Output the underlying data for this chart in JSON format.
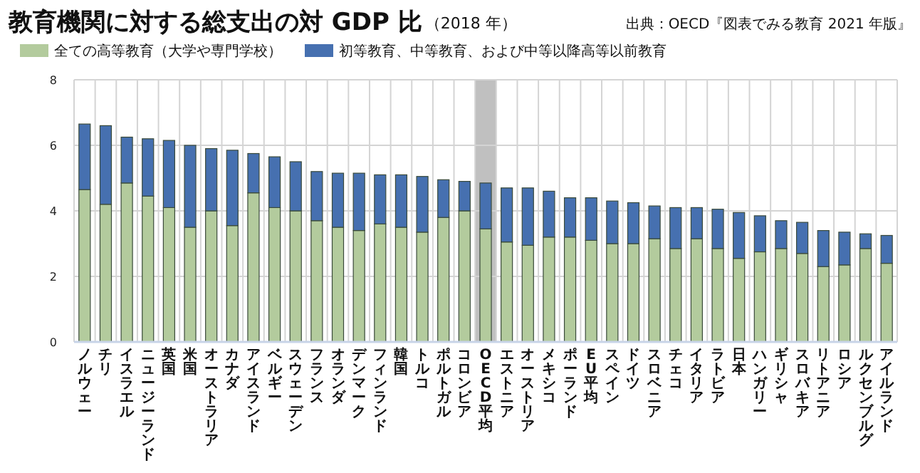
{
  "chart_data": {
    "type": "bar",
    "stacked": true,
    "title": "教育機関に対する総支出の対 GDP 比",
    "subtitle": "（2018 年）",
    "annotations": [
      "出典：OECD『図表でみる教育 2021 年版』"
    ],
    "categories": [
      "ノルウェー",
      "チリ",
      "イスラエル",
      "ニュージーランド",
      "英国",
      "米国",
      "オーストラリア",
      "カナダ",
      "アイスランド",
      "ベルギー",
      "スウェーデン",
      "フランス",
      "オランダ",
      "デンマーク",
      "フィンランド",
      "韓国",
      "トルコ",
      "ポルトガル",
      "コロンビア",
      "OECD平均",
      "エストニア",
      "オーストリア",
      "メキシコ",
      "ポーランド",
      "EU平均",
      "スペイン",
      "ドイツ",
      "スロベニア",
      "チェコ",
      "イタリア",
      "ラトビア",
      "日本",
      "ハンガリー",
      "ギリシャ",
      "スロバキア",
      "リトアニア",
      "ロシア",
      "ルクセンブルグ",
      "アイルランド"
    ],
    "series": [
      {
        "name": "全ての高等教育（大学や専門学校）",
        "color": "#b3cb9d",
        "values": [
          4.65,
          4.2,
          4.85,
          4.45,
          4.1,
          3.5,
          4.0,
          3.55,
          4.55,
          4.1,
          4.0,
          3.7,
          3.5,
          3.4,
          3.6,
          3.5,
          3.35,
          3.8,
          4.0,
          3.45,
          3.05,
          2.95,
          3.2,
          3.2,
          3.1,
          3.0,
          3.0,
          3.15,
          2.85,
          3.15,
          2.85,
          2.55,
          2.75,
          2.85,
          2.7,
          2.3,
          2.35,
          2.85,
          2.4
        ]
      },
      {
        "name": "初等教育、中等教育、および中等以降高等以前教育",
        "color": "#4670b0",
        "values": [
          2.0,
          2.4,
          1.4,
          1.75,
          2.05,
          2.5,
          1.9,
          2.3,
          1.2,
          1.55,
          1.5,
          1.5,
          1.65,
          1.75,
          1.5,
          1.6,
          1.7,
          1.15,
          0.9,
          1.4,
          1.65,
          1.75,
          1.4,
          1.2,
          1.3,
          1.3,
          1.25,
          1.0,
          1.25,
          0.95,
          1.2,
          1.4,
          1.1,
          0.85,
          0.95,
          1.1,
          1.0,
          0.45,
          0.85
        ]
      }
    ],
    "bands": [
      {
        "axis": "x",
        "from": "OECD平均",
        "to": "OECD平均",
        "color": "#c0c0c0"
      }
    ],
    "ylim": [
      0,
      8
    ],
    "yticks": [
      0,
      2,
      4,
      6,
      8
    ],
    "grid": true,
    "legend": "top left"
  }
}
